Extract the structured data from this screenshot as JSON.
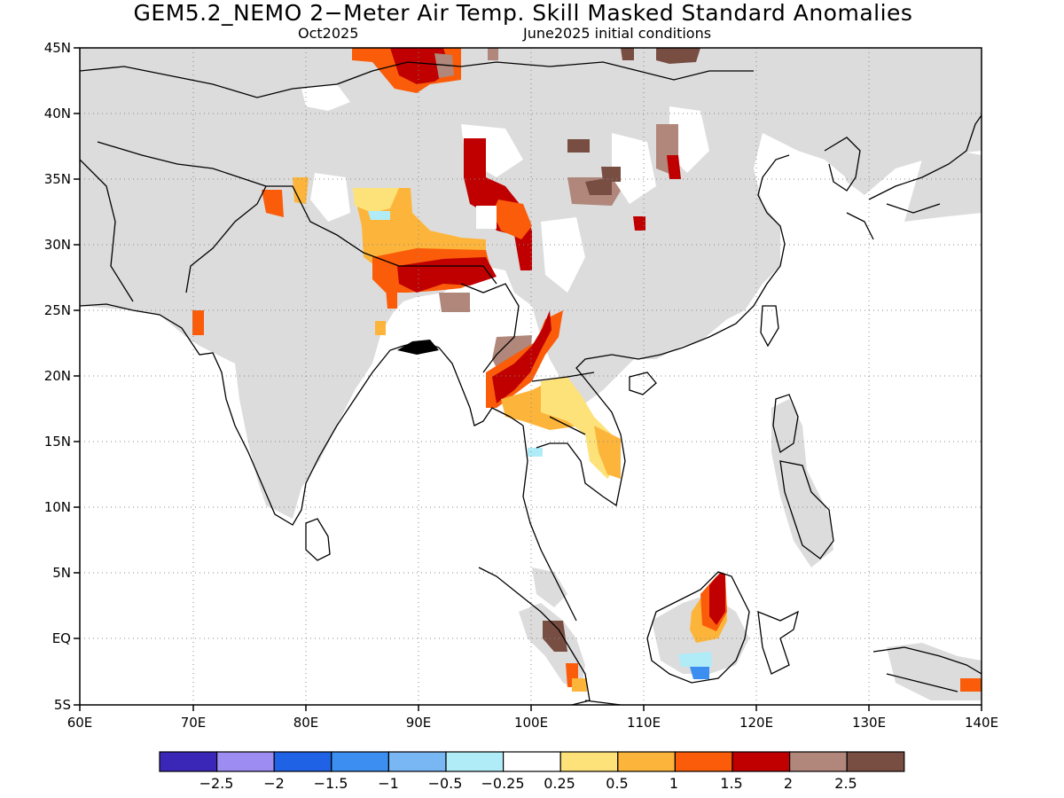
{
  "title": "GEM5.2_NEMO 2−Meter Air Temp. Skill Masked Standard Anomalies",
  "subtitle_left": "Oct2025",
  "subtitle_right": "June2025 initial conditions",
  "map": {
    "lon_range": [
      60,
      140
    ],
    "lat_range": [
      -5,
      45
    ],
    "lon_ticks": [
      "60E",
      "70E",
      "80E",
      "90E",
      "100E",
      "110E",
      "120E",
      "130E",
      "140E"
    ],
    "lat_ticks": [
      "5S",
      "EQ",
      "5N",
      "10N",
      "15N",
      "20N",
      "25N",
      "30N",
      "35N",
      "40N",
      "45N"
    ],
    "grid": "dotted",
    "masked_color": "#dcdcdc",
    "coast_color": "#000000"
  },
  "colorbar": {
    "labels": [
      "−2.5",
      "−2",
      "−1.5",
      "−1",
      "−0.5",
      "−0.25",
      "0.25",
      "0.5",
      "1",
      "1.5",
      "2",
      "2.5"
    ],
    "colors": [
      "#3a27b8",
      "#9d8cf2",
      "#1f62e6",
      "#3c8ff0",
      "#78b6f4",
      "#b0ecf8",
      "#ffffff",
      "#fde27a",
      "#fcb53a",
      "#fa5c0a",
      "#c00000",
      "#b0877a",
      "#784e42"
    ]
  },
  "chart_data": {
    "type": "heatmap",
    "variable": "2-Meter Air Temp. Standard Anomaly",
    "lon_range": [
      60,
      140
    ],
    "lat_range": [
      -5,
      45
    ],
    "anomaly_patches": [
      {
        "lon": [
          84.5,
          92.5
        ],
        "lat": [
          43.5,
          45
        ],
        "value": 1.7
      },
      {
        "lon": [
          89,
          93
        ],
        "lat": [
          42,
          45
        ],
        "value": 2.1
      },
      {
        "lon": [
          96.5,
          100
        ],
        "lat": [
          30.5,
          37.5
        ],
        "value": 2.1
      },
      {
        "lon": [
          96,
          99.5
        ],
        "lat": [
          20,
          25
        ],
        "value": 2.3
      },
      {
        "lon": [
          99.5,
          102
        ],
        "lat": [
          21,
          25
        ],
        "value": 1.6
      },
      {
        "lon": [
          98.5,
          101
        ],
        "lat": [
          18,
          21
        ],
        "value": 1.3
      },
      {
        "lon": [
          102,
          107
        ],
        "lat": [
          12.5,
          17.5
        ],
        "value": 0.4
      },
      {
        "lon": [
          107,
          109
        ],
        "lat": [
          32,
          35
        ],
        "value": 2.6
      },
      {
        "lon": [
          115.5,
          117
        ],
        "lat": [
          2,
          5
        ],
        "value": 2.1
      },
      {
        "lon": [
          113,
          117
        ],
        "lat": [
          0.5,
          3
        ],
        "value": 1.3
      },
      {
        "lon": [
          114.5,
          116
        ],
        "lat": [
          -3,
          -1
        ],
        "value": -0.8
      }
    ]
  }
}
